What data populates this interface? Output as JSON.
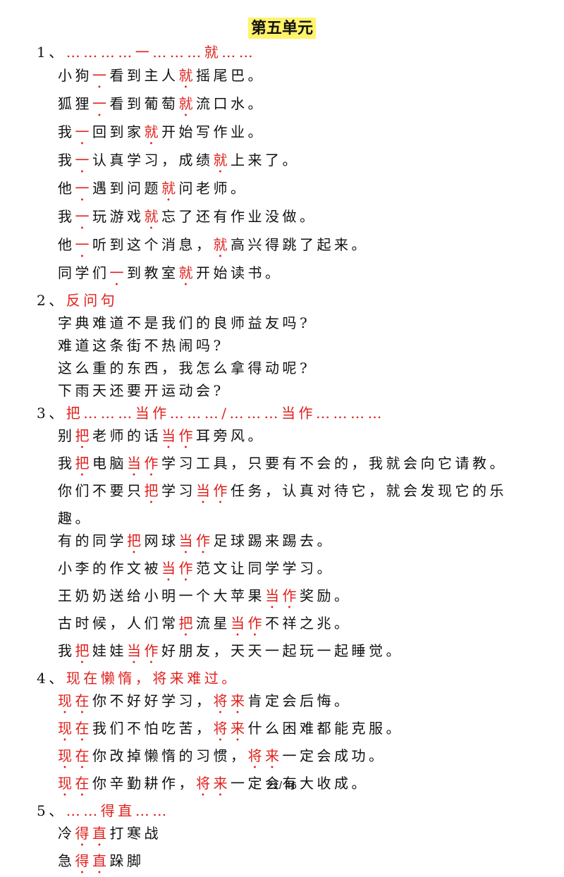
{
  "header": {
    "title": "第五单元"
  },
  "sections": [
    {
      "number": "1、",
      "heading": "…………一………就……",
      "lines": [
        [
          {
            "text": "小狗"
          },
          {
            "em": "一"
          },
          {
            "text": "看到主人"
          },
          {
            "em": "就"
          },
          {
            "text": "摇尾巴。"
          }
        ],
        [
          {
            "text": "狐狸"
          },
          {
            "em": "一"
          },
          {
            "text": "看到葡萄"
          },
          {
            "em": "就"
          },
          {
            "text": "流口水。"
          }
        ],
        [
          {
            "text": "我"
          },
          {
            "em": "一"
          },
          {
            "text": "回到家"
          },
          {
            "em": "就"
          },
          {
            "text": "开始写作业。"
          }
        ],
        [
          {
            "text": "我"
          },
          {
            "em": "一"
          },
          {
            "text": "认真学习，成绩"
          },
          {
            "em": "就"
          },
          {
            "text": "上来了。"
          }
        ],
        [
          {
            "text": "他"
          },
          {
            "em": "一"
          },
          {
            "text": "遇到问题"
          },
          {
            "em": "就"
          },
          {
            "text": "问老师。"
          }
        ],
        [
          {
            "text": "我"
          },
          {
            "em": "一"
          },
          {
            "text": "玩游戏"
          },
          {
            "em": "就"
          },
          {
            "text": "忘了还有作业没做。"
          }
        ],
        [
          {
            "text": "他"
          },
          {
            "em": "一"
          },
          {
            "text": "听到这个消息，"
          },
          {
            "em": "就"
          },
          {
            "text": "高兴得跳了起来。"
          }
        ],
        [
          {
            "text": "同学们"
          },
          {
            "em": "一"
          },
          {
            "text": "到教室"
          },
          {
            "em": "就"
          },
          {
            "text": "开始读书。"
          }
        ]
      ]
    },
    {
      "number": "2、",
      "heading": "反问句",
      "lines": [
        [
          {
            "text": "字典难道不是我们的良师益友吗?"
          }
        ],
        [
          {
            "text": "难道这条街不热闹吗?"
          }
        ],
        [
          {
            "text": "这么重的东西，我怎么拿得动呢?"
          }
        ],
        [
          {
            "text": "下雨天还要开运动会?"
          }
        ]
      ]
    },
    {
      "number": "3、",
      "heading": "把………当作………/………当作…………",
      "lines": [
        [
          {
            "text": "别"
          },
          {
            "em": "把"
          },
          {
            "text": "老师的话"
          },
          {
            "em": "当作"
          },
          {
            "text": "耳旁风。"
          }
        ],
        [
          {
            "text": "我"
          },
          {
            "em": "把"
          },
          {
            "text": "电脑"
          },
          {
            "em": "当作"
          },
          {
            "text": "学习工具，只要有不会的，我就会向它请教。"
          }
        ],
        [
          {
            "text": "你们不要只"
          },
          {
            "em": "把"
          },
          {
            "text": "学习"
          },
          {
            "em": "当作"
          },
          {
            "text": "任务，认真对待它，就会发现它的乐趣。"
          }
        ],
        [
          {
            "text": "有的同学"
          },
          {
            "em": "把"
          },
          {
            "text": "网球"
          },
          {
            "em": "当作"
          },
          {
            "text": "足球踢来踢去。"
          }
        ],
        [
          {
            "text": "小李的作文被"
          },
          {
            "em": "当作"
          },
          {
            "text": "范文让同学学习。"
          }
        ],
        [
          {
            "text": "王奶奶送给小明一个大苹果"
          },
          {
            "em": "当作"
          },
          {
            "text": "奖励。"
          }
        ],
        [
          {
            "text": "古时候，人们常"
          },
          {
            "em": "把"
          },
          {
            "text": "流星"
          },
          {
            "em": "当作"
          },
          {
            "text": "不祥之兆。"
          }
        ],
        [
          {
            "text": "我"
          },
          {
            "em": "把"
          },
          {
            "text": "娃娃"
          },
          {
            "em": "当作"
          },
          {
            "text": "好朋友，天天一起玩一起睡觉。"
          }
        ]
      ]
    },
    {
      "number": "4、",
      "heading": "现在懒惰，将来难过。",
      "lines": [
        [
          {
            "em": "现在"
          },
          {
            "text": "你不好好学习，"
          },
          {
            "em": "将来"
          },
          {
            "text": "肯定会后悔。"
          }
        ],
        [
          {
            "em": "现在"
          },
          {
            "text": "我们不怕吃苦，"
          },
          {
            "em": "将来"
          },
          {
            "text": "什么困难都能克服。"
          }
        ],
        [
          {
            "em": "现在"
          },
          {
            "text": "你改掉懒惰的习惯，"
          },
          {
            "em": "将来"
          },
          {
            "text": "一定会成功。"
          }
        ],
        [
          {
            "em": "现在"
          },
          {
            "text": "你辛勤耕作，"
          },
          {
            "em": "将来"
          },
          {
            "text": "一定会有大收成。"
          }
        ]
      ]
    },
    {
      "number": "5、",
      "heading": "……得直……",
      "lines": [
        [
          {
            "text": "冷"
          },
          {
            "em": "得直"
          },
          {
            "text": "打寒战"
          }
        ],
        [
          {
            "text": "急"
          },
          {
            "em": "得直"
          },
          {
            "text": "跺脚"
          }
        ]
      ]
    }
  ],
  "footer": {
    "page": "21/ 46"
  }
}
